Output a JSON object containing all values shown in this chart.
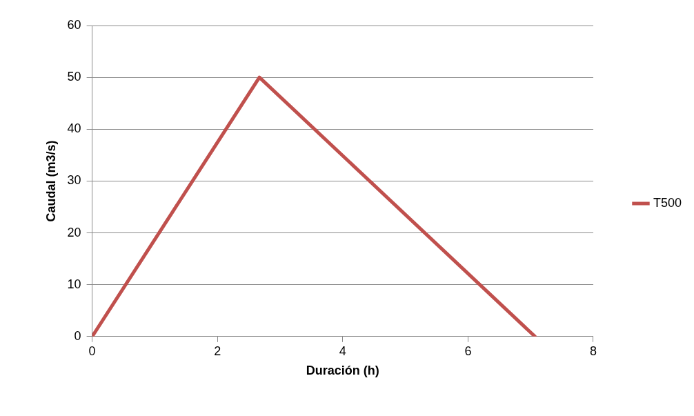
{
  "chart_data": {
    "type": "line",
    "xlabel": "Duración (h)",
    "ylabel": "Caudal (m3/s)",
    "series": [
      {
        "name": "T500",
        "color": "#c0504d",
        "x": [
          0,
          2.67,
          7.07
        ],
        "values": [
          0,
          50,
          0
        ]
      }
    ],
    "xlim": [
      0,
      8
    ],
    "xticks": [
      0,
      2,
      4,
      6,
      8
    ],
    "ylim": [
      0,
      60
    ],
    "yticks": [
      0,
      10,
      20,
      30,
      40,
      50,
      60
    ],
    "grid": "y",
    "legend": "right",
    "marker": "none",
    "line_style": "solid"
  }
}
